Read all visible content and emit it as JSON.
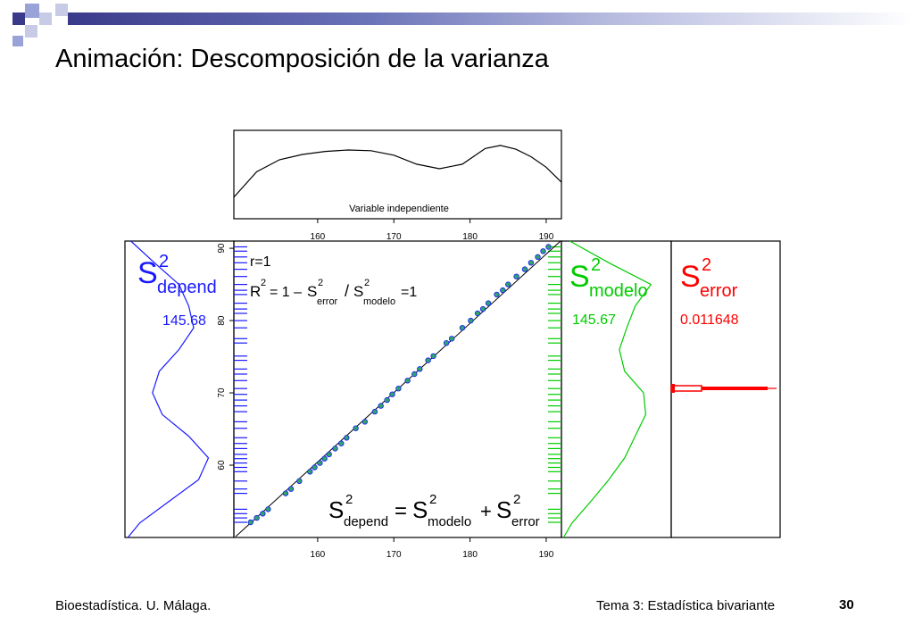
{
  "slide": {
    "title": "Animación: Descomposición de la varianza",
    "footer_left": "Bioestadística. U. Málaga.",
    "footer_topic": "Tema 3: Estadística bivariante",
    "page_number": "30"
  },
  "colors": {
    "depend": "#1a1aff",
    "modelo": "#00cc00",
    "error": "#ff0000",
    "banner_dark": "#3a3a8a",
    "points_fill": "#2ea36b",
    "points_edge": "#1a1aff"
  },
  "chart_data": [
    {
      "type": "line",
      "xlabel": "Variable independiente",
      "x_ticks": [
        160,
        170,
        180,
        190
      ],
      "xlim": [
        149,
        192
      ],
      "x": [
        149,
        152,
        155,
        158,
        161,
        164,
        167,
        170,
        173,
        176,
        179,
        182,
        184,
        186,
        188,
        190,
        192
      ],
      "y": [
        0.18,
        0.52,
        0.68,
        0.75,
        0.79,
        0.81,
        0.8,
        0.74,
        0.62,
        0.56,
        0.62,
        0.83,
        0.87,
        0.82,
        0.72,
        0.58,
        0.38
      ],
      "ylim": [
        0,
        1
      ]
    },
    {
      "type": "scatter",
      "x_ticks": [
        160,
        170,
        180,
        190
      ],
      "y_ticks": [
        60,
        70,
        80,
        90
      ],
      "xlim": [
        149,
        192
      ],
      "ylim": [
        50,
        91
      ],
      "annotations": {
        "r": "r=1",
        "r2_lead": "R",
        "r2_mid": "= 1 –",
        "r2_s1": "S",
        "r2_sub1": "error",
        "r2_slash": "/",
        "r2_s2": "S",
        "r2_sub2": "modelo",
        "r2_end": "=1",
        "eq_s": "S",
        "eq_sub_depend": "depend",
        "eq_equals": "=",
        "eq_sub_modelo": "modelo",
        "eq_plus": "+",
        "eq_sub_error": "error",
        "sup": "2"
      },
      "points": [
        [
          151.2,
          52.1
        ],
        [
          152.0,
          52.7
        ],
        [
          152.8,
          53.3
        ],
        [
          153.5,
          53.9
        ],
        [
          155.8,
          56.1
        ],
        [
          156.5,
          56.7
        ],
        [
          157.6,
          57.8
        ],
        [
          159.0,
          59.1
        ],
        [
          159.6,
          59.7
        ],
        [
          160.3,
          60.3
        ],
        [
          160.9,
          60.9
        ],
        [
          161.5,
          61.5
        ],
        [
          162.3,
          62.3
        ],
        [
          163.1,
          63.0
        ],
        [
          163.8,
          63.8
        ],
        [
          165.0,
          65.1
        ],
        [
          166.2,
          66.0
        ],
        [
          167.5,
          67.4
        ],
        [
          168.3,
          68.2
        ],
        [
          169.1,
          69.0
        ],
        [
          169.8,
          69.8
        ],
        [
          170.6,
          70.6
        ],
        [
          171.8,
          71.7
        ],
        [
          172.7,
          72.6
        ],
        [
          173.4,
          73.3
        ],
        [
          174.5,
          74.5
        ],
        [
          175.2,
          75.1
        ],
        [
          176.9,
          76.9
        ],
        [
          177.6,
          77.5
        ],
        [
          179.0,
          79.0
        ],
        [
          180.1,
          80.0
        ],
        [
          181.0,
          81.0
        ],
        [
          181.7,
          81.6
        ],
        [
          182.4,
          82.4
        ],
        [
          183.5,
          83.6
        ],
        [
          184.3,
          84.2
        ],
        [
          185.0,
          85.0
        ],
        [
          186.1,
          86.1
        ],
        [
          187.2,
          87.1
        ],
        [
          188.0,
          88.0
        ],
        [
          188.9,
          88.8
        ],
        [
          189.6,
          89.6
        ],
        [
          190.3,
          90.2
        ]
      ]
    },
    {
      "type": "line",
      "name": "S2 depend",
      "label_s": "S",
      "label_sup": "2",
      "label_sub": "depend",
      "value": "145.68",
      "y_range": [
        50,
        91
      ],
      "y": [
        91,
        88,
        85,
        82,
        79,
        76,
        73,
        70,
        67,
        64,
        61,
        58,
        55,
        52,
        50
      ],
      "density": [
        0.06,
        0.3,
        0.55,
        0.65,
        0.7,
        0.55,
        0.35,
        0.28,
        0.38,
        0.65,
        0.85,
        0.75,
        0.45,
        0.15,
        0.03
      ]
    },
    {
      "type": "line",
      "name": "S2 modelo",
      "label_s": "S",
      "label_sup": "2",
      "label_sub": "modelo",
      "value": "145.67",
      "y_range": [
        50,
        91
      ],
      "y": [
        91,
        88,
        85,
        82,
        79,
        76,
        73,
        70,
        67,
        64,
        61,
        58,
        55,
        52,
        50
      ],
      "density": [
        0.08,
        0.45,
        0.85,
        0.7,
        0.62,
        0.55,
        0.6,
        0.78,
        0.8,
        0.7,
        0.6,
        0.45,
        0.28,
        0.1,
        0.02
      ]
    },
    {
      "type": "bar",
      "name": "S2 error",
      "label_s": "S",
      "label_sup": "2",
      "label_sub": "error",
      "value": "0.011648"
    }
  ]
}
